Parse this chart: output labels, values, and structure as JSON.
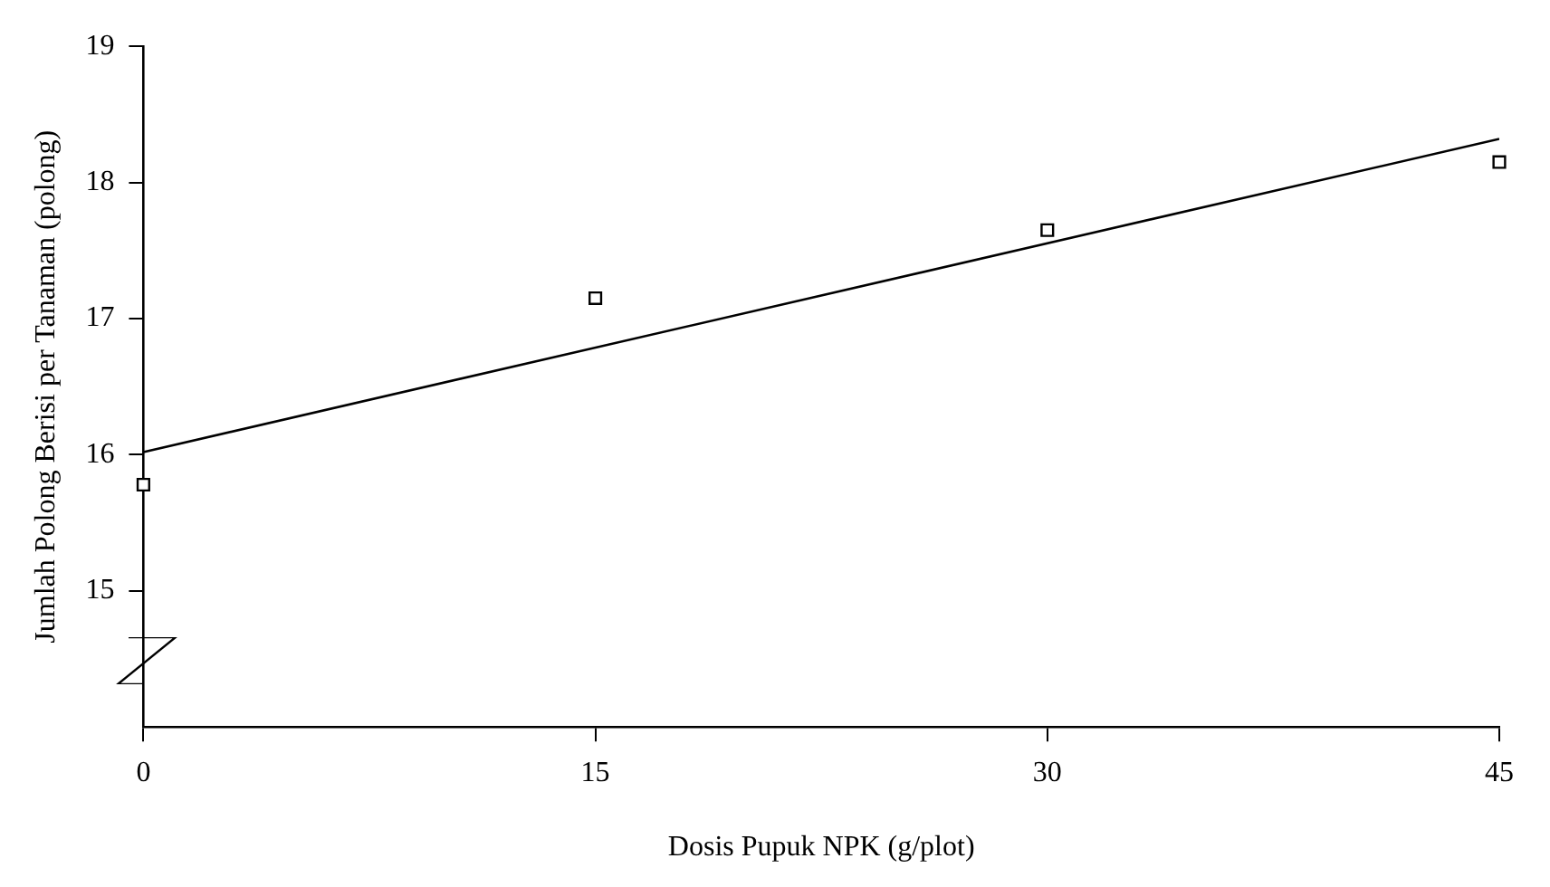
{
  "chart_data": {
    "type": "scatter",
    "xlabel": "Dosis Pupuk NPK (g/plot)",
    "ylabel": "Jumlah Polong Berisi per Tanaman (polong)",
    "xlim": [
      0,
      45
    ],
    "xticks": [
      0,
      15,
      30,
      45
    ],
    "ylim": [
      14,
      19
    ],
    "yticks": [
      15,
      16,
      17,
      18,
      19
    ],
    "series": [
      {
        "x": [
          0,
          15,
          30,
          45
        ],
        "values": [
          15.78,
          17.15,
          17.65,
          18.15
        ],
        "color": "#000000",
        "marker": "square"
      },
      {
        "type": "line",
        "x": [
          0,
          45
        ],
        "values": [
          16.02,
          18.32
        ],
        "color": "#000000"
      }
    ]
  }
}
